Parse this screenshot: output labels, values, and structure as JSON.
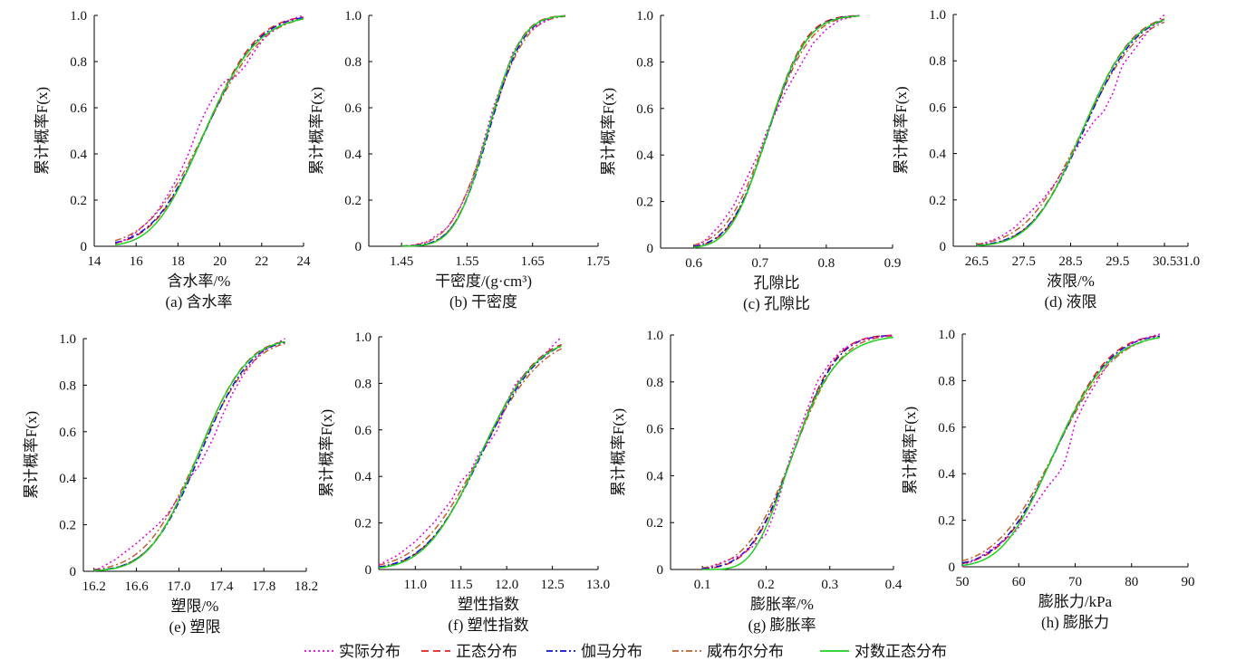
{
  "legend": {
    "items": [
      {
        "label": "实际分布",
        "color": "#e000e0",
        "dash": "dot"
      },
      {
        "label": "正态分布",
        "color": "#e02020",
        "dash": "dash"
      },
      {
        "label": "伽马分布",
        "color": "#1010d0",
        "dash": "dashdot"
      },
      {
        "label": "威布尔分布",
        "color": "#c06030",
        "dash": "dashdot"
      },
      {
        "label": "对数正态分布",
        "color": "#20d020",
        "dash": "solid"
      }
    ]
  },
  "chart_data": [
    {
      "type": "line",
      "panel": "a",
      "caption": "(a) 含水率",
      "xlabel": "含水率/%",
      "ylabel": "累计概率F(x)",
      "xlim": [
        14,
        24
      ],
      "ylim": [
        0,
        1
      ],
      "xticks": [
        "14",
        "16",
        "18",
        "20",
        "22",
        "24"
      ],
      "yticks": [
        "0",
        "0.2",
        "0.4",
        "0.6",
        "0.8",
        "1.0"
      ],
      "dist": {
        "mean": 19.3,
        "sd": 1.95,
        "xmin": 15,
        "xmax": 24
      },
      "empirical": {
        "x": [
          15.0,
          15.5,
          16.0,
          16.5,
          17.0,
          17.5,
          18.0,
          18.5,
          19.0,
          19.3,
          19.6,
          20.0,
          20.3,
          20.7,
          21.2,
          21.7,
          22.2,
          22.8,
          23.3,
          24.0
        ],
        "y": [
          0.01,
          0.03,
          0.06,
          0.1,
          0.15,
          0.22,
          0.3,
          0.4,
          0.52,
          0.58,
          0.63,
          0.69,
          0.72,
          0.73,
          0.78,
          0.85,
          0.91,
          0.95,
          0.98,
          1.0
        ]
      }
    },
    {
      "type": "line",
      "panel": "b",
      "caption": "(b) 干密度",
      "xlabel": "干密度/(g·cm³)",
      "ylabel": "累计概率F(x)",
      "xlim": [
        1.4,
        1.75
      ],
      "ylim": [
        0,
        1
      ],
      "xticks": [
        "1.45",
        "1.55",
        "1.65",
        "1.75"
      ],
      "yticks": [
        "0",
        "0.2",
        "0.4",
        "0.6",
        "0.8",
        "1.0"
      ],
      "dist": {
        "mean": 1.582,
        "sd": 0.04,
        "xmin": 1.45,
        "xmax": 1.7
      },
      "empirical": {
        "x": [
          1.46,
          1.49,
          1.52,
          1.54,
          1.56,
          1.57,
          1.58,
          1.59,
          1.6,
          1.61,
          1.62,
          1.64,
          1.66,
          1.68,
          1.7
        ],
        "y": [
          0.0,
          0.02,
          0.08,
          0.17,
          0.3,
          0.4,
          0.5,
          0.6,
          0.68,
          0.76,
          0.84,
          0.92,
          0.96,
          0.99,
          1.0
        ]
      }
    },
    {
      "type": "line",
      "panel": "c",
      "caption": "(c) 孔隙比",
      "xlabel": "孔隙比",
      "ylabel": "累计概率F(x)",
      "xlim": [
        0.55,
        0.9
      ],
      "ylim": [
        0,
        1
      ],
      "xticks": [
        "0.6",
        "0.7",
        "0.8",
        "0.9"
      ],
      "yticks": [
        "0",
        "0.2",
        "0.4",
        "0.6",
        "0.8",
        "1.0"
      ],
      "dist": {
        "mean": 0.712,
        "sd": 0.045,
        "xmin": 0.6,
        "xmax": 0.85
      },
      "empirical": {
        "x": [
          0.6,
          0.62,
          0.64,
          0.66,
          0.68,
          0.7,
          0.71,
          0.72,
          0.74,
          0.76,
          0.78,
          0.8,
          0.82,
          0.85
        ],
        "y": [
          0.0,
          0.04,
          0.1,
          0.18,
          0.3,
          0.42,
          0.5,
          0.56,
          0.68,
          0.78,
          0.88,
          0.94,
          0.98,
          1.0
        ]
      }
    },
    {
      "type": "line",
      "panel": "d",
      "caption": "(d) 液限",
      "xlabel": "液限/%",
      "ylabel": "累计概率F(x)",
      "xlim": [
        26,
        31
      ],
      "ylim": [
        0,
        1
      ],
      "xticks": [
        "26.5",
        "27.5",
        "28.5",
        "29.5",
        "30.5",
        "31.0"
      ],
      "yticks": [
        "0",
        "0.2",
        "0.4",
        "0.6",
        "0.8",
        "1.0"
      ],
      "dist": {
        "mean": 28.75,
        "sd": 0.85,
        "xmin": 26.5,
        "xmax": 30.5
      },
      "empirical": {
        "x": [
          26.5,
          27.0,
          27.3,
          27.6,
          27.9,
          28.2,
          28.5,
          28.8,
          29.0,
          29.2,
          29.4,
          29.6,
          29.9,
          30.2,
          30.5
        ],
        "y": [
          0.0,
          0.04,
          0.08,
          0.14,
          0.2,
          0.28,
          0.38,
          0.48,
          0.54,
          0.58,
          0.66,
          0.78,
          0.86,
          0.94,
          1.0
        ]
      }
    },
    {
      "type": "line",
      "panel": "e",
      "caption": "(e) 塑限",
      "xlabel": "塑限/%",
      "ylabel": "累计概率F(x)",
      "xlim": [
        16.1,
        18.2
      ],
      "ylim": [
        0,
        1
      ],
      "xticks": [
        "16.2",
        "16.6",
        "17.0",
        "17.4",
        "17.8",
        "18.2"
      ],
      "yticks": [
        "0",
        "0.2",
        "0.4",
        "0.6",
        "0.8",
        "1.0"
      ],
      "dist": {
        "mean": 17.18,
        "sd": 0.36,
        "xmin": 16.2,
        "xmax": 18.0
      },
      "empirical": {
        "x": [
          16.2,
          16.4,
          16.6,
          16.8,
          16.9,
          17.0,
          17.1,
          17.2,
          17.3,
          17.35,
          17.4,
          17.5,
          17.6,
          17.7,
          17.8,
          18.0
        ],
        "y": [
          0.0,
          0.05,
          0.12,
          0.2,
          0.25,
          0.32,
          0.4,
          0.46,
          0.55,
          0.6,
          0.66,
          0.76,
          0.84,
          0.9,
          0.95,
          1.0
        ]
      }
    },
    {
      "type": "line",
      "panel": "f",
      "caption": "(f) 塑性指数",
      "xlabel": "塑性指数",
      "ylabel": "累计概率F(x)",
      "xlim": [
        10.6,
        13.0
      ],
      "ylim": [
        0,
        1
      ],
      "xticks": [
        "11.0",
        "11.5",
        "12.0",
        "12.5",
        "13.0"
      ],
      "yticks": [
        "0",
        "0.2",
        "0.4",
        "0.6",
        "0.8",
        "1.0"
      ],
      "dist": {
        "mean": 11.72,
        "sd": 0.48,
        "xmin": 10.6,
        "xmax": 12.6
      },
      "empirical": {
        "x": [
          10.6,
          10.8,
          11.0,
          11.2,
          11.4,
          11.5,
          11.6,
          11.7,
          11.8,
          11.9,
          12.0,
          12.1,
          12.3,
          12.5,
          12.6
        ],
        "y": [
          0.02,
          0.06,
          0.12,
          0.2,
          0.3,
          0.38,
          0.42,
          0.5,
          0.54,
          0.6,
          0.72,
          0.8,
          0.88,
          0.96,
          1.0
        ]
      }
    },
    {
      "type": "line",
      "panel": "g",
      "caption": "(g) 膨胀率",
      "xlabel": "膨胀率/%",
      "ylabel": "累计概率F(x)",
      "xlim": [
        0.05,
        0.4
      ],
      "ylim": [
        0,
        1
      ],
      "xticks": [
        "0.1",
        "0.2",
        "0.3",
        "0.4"
      ],
      "yticks": [
        "0",
        "0.2",
        "0.4",
        "0.6",
        "0.8",
        "1.0"
      ],
      "dist": {
        "mean": 0.243,
        "sd": 0.052,
        "xmin": 0.1,
        "xmax": 0.4
      },
      "empirical": {
        "x": [
          0.1,
          0.13,
          0.16,
          0.18,
          0.2,
          0.21,
          0.22,
          0.23,
          0.24,
          0.25,
          0.26,
          0.27,
          0.28,
          0.3,
          0.32,
          0.35,
          0.4
        ],
        "y": [
          0.0,
          0.03,
          0.06,
          0.1,
          0.15,
          0.22,
          0.3,
          0.4,
          0.5,
          0.58,
          0.65,
          0.72,
          0.8,
          0.88,
          0.94,
          0.98,
          1.0
        ]
      }
    },
    {
      "type": "line",
      "panel": "h",
      "caption": "(h) 膨胀力",
      "xlabel": "膨胀力/kPa",
      "ylabel": "累计概率F(x)",
      "xlim": [
        50,
        90
      ],
      "ylim": [
        0,
        1
      ],
      "xticks": [
        "50",
        "60",
        "70",
        "80",
        "90"
      ],
      "yticks": [
        "0",
        "0.2",
        "0.4",
        "0.6",
        "0.8",
        "1.0"
      ],
      "dist": {
        "mean": 66.5,
        "sd": 7.5,
        "xmin": 50,
        "xmax": 85
      },
      "empirical": {
        "x": [
          50,
          53,
          56,
          59,
          61,
          63,
          65,
          67,
          68,
          69,
          70,
          72,
          74,
          76,
          78,
          80,
          82,
          85
        ],
        "y": [
          0.0,
          0.04,
          0.09,
          0.14,
          0.2,
          0.27,
          0.34,
          0.4,
          0.44,
          0.52,
          0.62,
          0.72,
          0.8,
          0.88,
          0.92,
          0.96,
          0.98,
          1.0
        ]
      }
    }
  ]
}
